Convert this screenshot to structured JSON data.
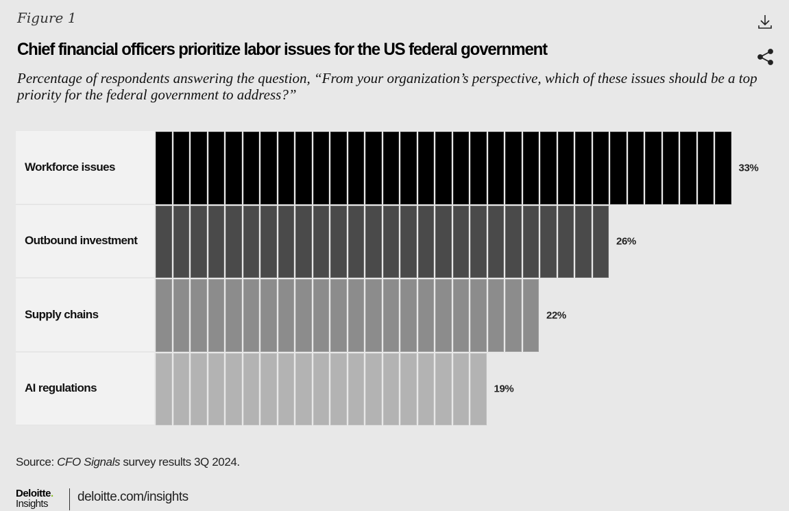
{
  "figure_label": "Figure 1",
  "title": "Chief financial officers prioritize labor issues for the US federal government",
  "subtitle": "Percentage of respondents answering the question, “From your organization’s perspective, which of these issues should be a top priority for the federal government to address?”",
  "icons": {
    "download": "download-icon",
    "share": "share-icon"
  },
  "source": {
    "prefix": "Source: ",
    "italic": "CFO Signals",
    "suffix": " survey results 3Q 2024."
  },
  "brand": {
    "name": "Deloitte",
    "dot": ".",
    "sub": "Insights",
    "url": "deloitte.com/insights"
  },
  "chart_data": {
    "type": "bar",
    "orientation": "horizontal",
    "style": "unit-blocks (one block per percentage point)",
    "title": "Chief financial officers prioritize labor issues for the US federal government",
    "xlabel": "",
    "ylabel": "",
    "unit": "%",
    "categories": [
      "Workforce issues",
      "Outbound investment",
      "Supply chains",
      "AI regulations"
    ],
    "values": [
      33,
      26,
      22,
      19
    ],
    "value_labels": [
      "33%",
      "26%",
      "22%",
      "19%"
    ],
    "colors": [
      "#000000",
      "#4a4a4a",
      "#8c8c8c",
      "#b3b3b3"
    ],
    "grid": false,
    "legend": "none"
  }
}
